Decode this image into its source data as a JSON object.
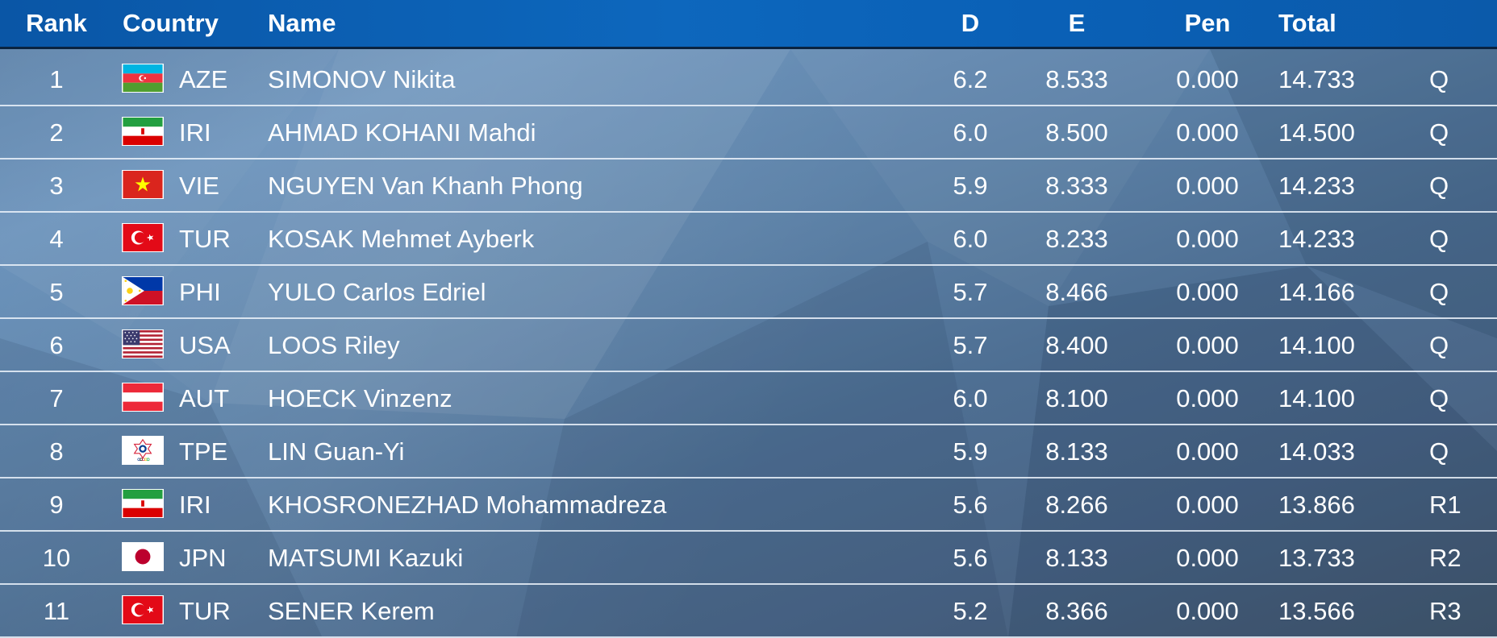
{
  "columns": {
    "rank": "Rank",
    "country": "Country",
    "name": "Name",
    "d": "D",
    "e": "E",
    "pen": "Pen",
    "total": "Total"
  },
  "rows": [
    {
      "rank": "1",
      "flag_icon": "azerbaijan-flag-icon",
      "country": "AZE",
      "name": "SIMONOV Nikita",
      "d": "6.2",
      "e": "8.533",
      "pen": "0.000",
      "total": "14.733",
      "qual": "Q"
    },
    {
      "rank": "2",
      "flag_icon": "iran-flag-icon",
      "country": "IRI",
      "name": "AHMAD KOHANI Mahdi",
      "d": "6.0",
      "e": "8.500",
      "pen": "0.000",
      "total": "14.500",
      "qual": "Q"
    },
    {
      "rank": "3",
      "flag_icon": "vietnam-flag-icon",
      "country": "VIE",
      "name": "NGUYEN Van Khanh Phong",
      "d": "5.9",
      "e": "8.333",
      "pen": "0.000",
      "total": "14.233",
      "qual": "Q"
    },
    {
      "rank": "4",
      "flag_icon": "turkey-flag-icon",
      "country": "TUR",
      "name": "KOSAK Mehmet Ayberk",
      "d": "6.0",
      "e": "8.233",
      "pen": "0.000",
      "total": "14.233",
      "qual": "Q"
    },
    {
      "rank": "5",
      "flag_icon": "philippines-flag-icon",
      "country": "PHI",
      "name": "YULO Carlos Edriel",
      "d": "5.7",
      "e": "8.466",
      "pen": "0.000",
      "total": "14.166",
      "qual": "Q"
    },
    {
      "rank": "6",
      "flag_icon": "usa-flag-icon",
      "country": "USA",
      "name": "LOOS Riley",
      "d": "5.7",
      "e": "8.400",
      "pen": "0.000",
      "total": "14.100",
      "qual": "Q"
    },
    {
      "rank": "7",
      "flag_icon": "austria-flag-icon",
      "country": "AUT",
      "name": "HOECK Vinzenz",
      "d": "6.0",
      "e": "8.100",
      "pen": "0.000",
      "total": "14.100",
      "qual": "Q"
    },
    {
      "rank": "8",
      "flag_icon": "chinese-taipei-flag-icon",
      "country": "TPE",
      "name": "LIN Guan-Yi",
      "d": "5.9",
      "e": "8.133",
      "pen": "0.000",
      "total": "14.033",
      "qual": "Q"
    },
    {
      "rank": "9",
      "flag_icon": "iran-flag-icon",
      "country": "IRI",
      "name": "KHOSRONEZHAD Mohammadreza",
      "d": "5.6",
      "e": "8.266",
      "pen": "0.000",
      "total": "13.866",
      "qual": "R1"
    },
    {
      "rank": "10",
      "flag_icon": "japan-flag-icon",
      "country": "JPN",
      "name": "MATSUMI Kazuki",
      "d": "5.6",
      "e": "8.133",
      "pen": "0.000",
      "total": "13.733",
      "qual": "R2"
    },
    {
      "rank": "11",
      "flag_icon": "turkey-flag-icon",
      "country": "TUR",
      "name": "SENER Kerem",
      "d": "5.2",
      "e": "8.366",
      "pen": "0.000",
      "total": "13.566",
      "qual": "R3"
    }
  ],
  "colors": {
    "header": "#0d67bd",
    "text": "#ffffff",
    "row_divider": "#ebf2fa"
  }
}
